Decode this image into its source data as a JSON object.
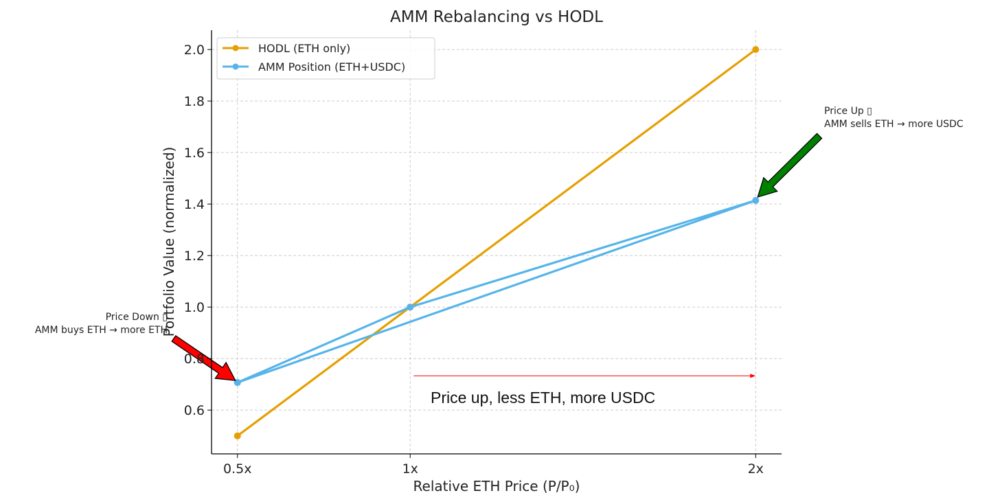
{
  "chart_data": {
    "type": "line",
    "title": "AMM Rebalancing vs HODL",
    "xlabel": "Relative ETH Price (P/P₀)",
    "ylabel": "Portfolio Value (normalized)",
    "xlim": [
      0.425,
      2.075
    ],
    "ylim": [
      0.43,
      2.075
    ],
    "x_ticks": [
      0.5,
      1,
      2
    ],
    "x_tick_labels": [
      "0.5x",
      "1x",
      "2x"
    ],
    "y_ticks": [
      0.6,
      0.8,
      1.0,
      1.2,
      1.4,
      1.6,
      1.8,
      2.0
    ],
    "y_tick_labels": [
      "0.6",
      "0.8",
      "1.0",
      "1.2",
      "1.4",
      "1.6",
      "1.8",
      "2.0"
    ],
    "grid": true,
    "legend_position": "top-left",
    "series": [
      {
        "name": "HODL (ETH only)",
        "color": "#E69F00",
        "x": [
          0.5,
          1,
          2
        ],
        "y": [
          0.5,
          1.0,
          2.0
        ]
      },
      {
        "name": "AMM Position (ETH+USDC)",
        "color": "#56B4E9",
        "x": [
          0.5,
          1,
          2,
          0.5
        ],
        "y": [
          0.707,
          1.0,
          1.414,
          0.707
        ]
      }
    ],
    "annotations": [
      {
        "text_lines": [
          "Price Down ▯",
          "AMM buys ETH → more ETH"
        ],
        "arrow_to": [
          0.5,
          0.707
        ],
        "arrow_color": "#FF0000"
      },
      {
        "text_lines": [
          "Price Up ▯",
          "AMM sells ETH → more USDC"
        ],
        "arrow_to": [
          2,
          1.414
        ],
        "arrow_color": "#008000"
      },
      {
        "text": "Price up, less ETH, more USDC",
        "arrow_from": [
          1.01,
          0.733
        ],
        "arrow_to": [
          2,
          0.733
        ],
        "arrow_color": "#FF0000"
      }
    ]
  }
}
